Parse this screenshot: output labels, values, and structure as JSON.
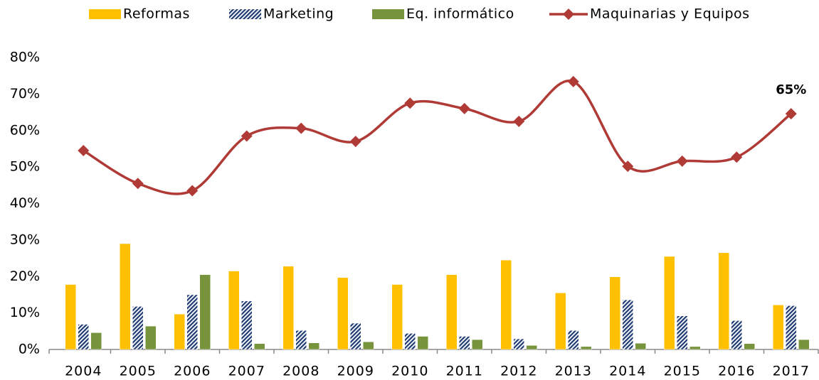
{
  "chart_data": {
    "type": "bar-line",
    "categories": [
      "2004",
      "2005",
      "2006",
      "2007",
      "2008",
      "2009",
      "2010",
      "2011",
      "2012",
      "2013",
      "2014",
      "2015",
      "2016",
      "2017"
    ],
    "series": [
      {
        "name": "Reformas",
        "type": "bar",
        "color": "#ffc000",
        "values": [
          17.8,
          29,
          9.7,
          21.5,
          22.8,
          19.7,
          17.8,
          20.5,
          24.5,
          15.5,
          19.9,
          25.5,
          26.5,
          12.2
        ]
      },
      {
        "name": "Marketing",
        "type": "bar",
        "color": "#1f3b73",
        "hatch": true,
        "values": [
          6.9,
          11.8,
          15,
          13.3,
          5.2,
          7.2,
          4.4,
          3.6,
          2.9,
          5.2,
          13.6,
          9.2,
          7.9,
          12
        ]
      },
      {
        "name": "Eq. informático",
        "type": "bar",
        "color": "#77933c",
        "values": [
          4.6,
          6.4,
          20.5,
          1.6,
          1.8,
          2.1,
          3.6,
          2.7,
          1.1,
          0.8,
          1.7,
          0.8,
          1.6,
          2.7
        ]
      },
      {
        "name": "Maquinarias y Equipos",
        "type": "line",
        "color": "#b03a36",
        "values": [
          54.5,
          45.5,
          43.5,
          58.5,
          60.6,
          57,
          67.5,
          66,
          62.5,
          73.4,
          50.2,
          51.6,
          52.7,
          64.6
        ],
        "value_labels": [
          null,
          null,
          null,
          null,
          null,
          null,
          null,
          null,
          null,
          null,
          null,
          null,
          null,
          "65%"
        ]
      }
    ],
    "ylim": [
      0,
      80
    ],
    "yticks": [
      {
        "value": 0,
        "label": "0%"
      },
      {
        "value": 10,
        "label": "10%"
      },
      {
        "value": 20,
        "label": "20%"
      },
      {
        "value": 30,
        "label": "30%"
      },
      {
        "value": 40,
        "label": "40%"
      },
      {
        "value": 50,
        "label": "50%"
      },
      {
        "value": 60,
        "label": "60%"
      },
      {
        "value": 70,
        "label": "70%"
      },
      {
        "value": 80,
        "label": "80%"
      }
    ],
    "grid": false,
    "legend": "top"
  }
}
